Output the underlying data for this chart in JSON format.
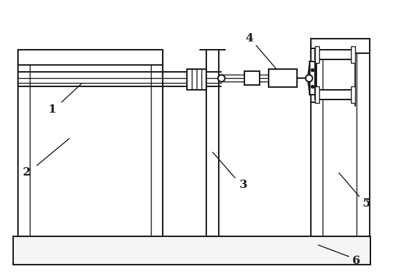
{
  "bg_color": "#ffffff",
  "line_color": "#1a1a1a",
  "figsize": [
    5.72,
    3.98
  ],
  "dpi": 100,
  "label_fontsize": 12,
  "layout": {
    "xmin": 0.0,
    "xmax": 572.0,
    "ymin": 0.0,
    "ymax": 398.0
  }
}
